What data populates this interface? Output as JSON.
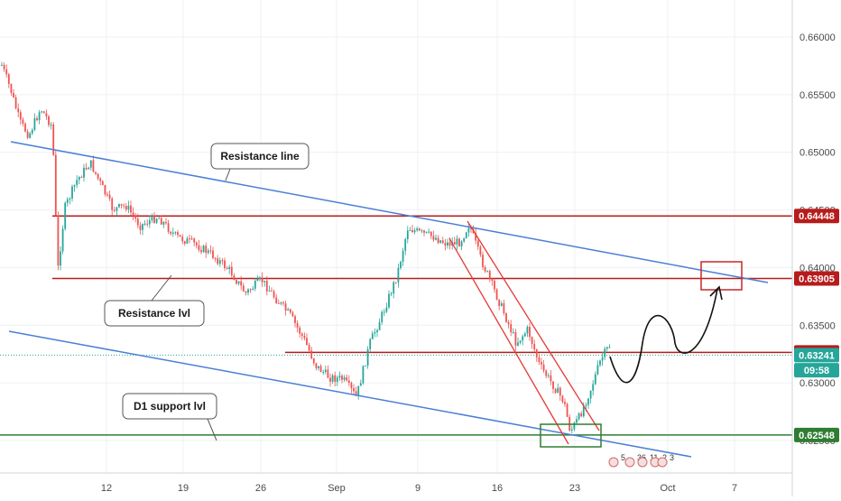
{
  "chart_data": {
    "type": "candlestick",
    "instrument_note": "",
    "y_axis": {
      "ticks": [
        "0.66000",
        "0.65500",
        "0.65000",
        "0.64500",
        "0.64000",
        "0.63500",
        "0.63000",
        "0.62500"
      ],
      "ylim": [
        0.6225,
        0.665
      ]
    },
    "x_axis": {
      "ticks": [
        "12",
        "19",
        "26",
        "Sep",
        "9",
        "16",
        "23",
        "Oct",
        "7"
      ]
    },
    "price_tags": [
      {
        "label": "0.64448",
        "value": 0.64448,
        "color": "#b71c1c"
      },
      {
        "label": "0.63905",
        "value": 0.63905,
        "color": "#b71c1c"
      },
      {
        "label": "0.63264",
        "value": 0.63264,
        "color": "#b71c1c"
      },
      {
        "label": "0.63241",
        "value": 0.63241,
        "color": "#26a69a"
      },
      {
        "label": "09:58",
        "value": 0.6311,
        "color": "#26a69a"
      },
      {
        "label": "0.62548",
        "value": 0.62548,
        "color": "#2e7d32"
      }
    ],
    "horizontal_levels": [
      {
        "value": 0.64448,
        "color": "#b71c1c"
      },
      {
        "value": 0.63905,
        "color": "#b71c1c"
      },
      {
        "value": 0.63264,
        "color": "#b71c1c"
      },
      {
        "value": 0.62548,
        "color": "#2e7d32"
      }
    ],
    "callouts": [
      {
        "text": "Resistance line"
      },
      {
        "text": "Resistance lvl"
      },
      {
        "text": "D1 support lvl"
      }
    ],
    "event_labels": [
      "5",
      "36",
      "11",
      "2",
      "3"
    ],
    "colors": {
      "up": "#26a69a",
      "down": "#ef5350",
      "trendline": "#4a7fd6",
      "channel": "#e53935",
      "grid": "#eef0f3",
      "axis_text": "#4a4a4a"
    }
  }
}
